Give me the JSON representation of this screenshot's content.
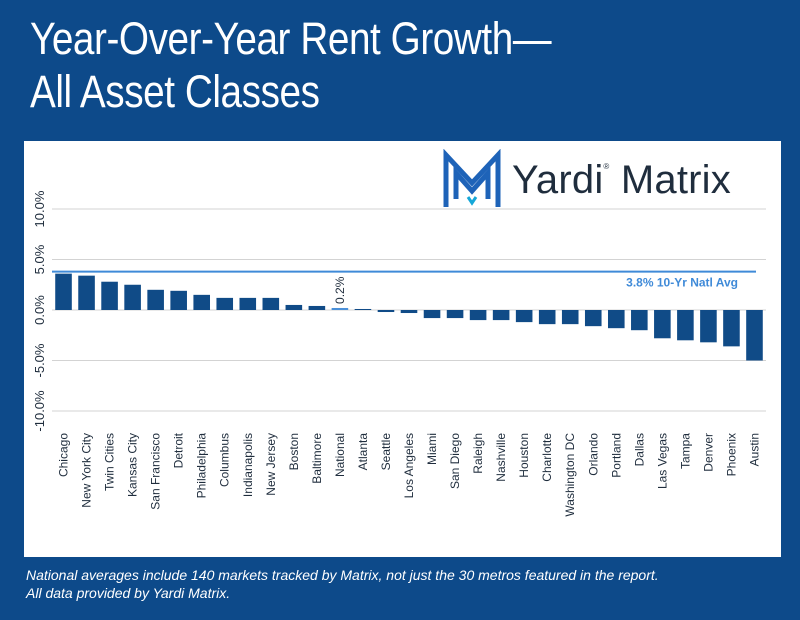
{
  "title": {
    "line1": "Year-Over-Year Rent Growth—",
    "line2": "All Asset Classes"
  },
  "logo": {
    "word": "Yardi",
    "registered": "®",
    "word2": "Matrix",
    "icon": "yardi-matrix-logo-icon"
  },
  "footnote": {
    "line1": "National averages include 140 markets tracked by Matrix, not just the 30 metros featured in the report.",
    "line2": "All data provided by Yardi Matrix."
  },
  "colors": {
    "background": "#0d4a8a",
    "bar": "#104b87",
    "national_bar": "#4a90d9",
    "reference_line": "#3f8ad8",
    "logo_icon": "#1e63b8"
  },
  "chart_data": {
    "type": "bar",
    "categories": [
      "Chicago",
      "New York City",
      "Twin Cities",
      "Kansas City",
      "San Francisco",
      "Detroit",
      "Philadelphia",
      "Columbus",
      "Indianapolis",
      "New Jersey",
      "Boston",
      "Baltimore",
      "National",
      "Atlanta",
      "Seattle",
      "Los Angeles",
      "Miami",
      "San Diego",
      "Raleigh",
      "Nashville",
      "Houston",
      "Charlotte",
      "Washington DC",
      "Orlando",
      "Portland",
      "Dallas",
      "Las Vegas",
      "Tampa",
      "Denver",
      "Phoenix",
      "Austin"
    ],
    "values": [
      3.6,
      3.4,
      2.8,
      2.5,
      2.0,
      1.9,
      1.5,
      1.2,
      1.2,
      1.2,
      0.5,
      0.4,
      0.2,
      0.1,
      -0.2,
      -0.3,
      -0.8,
      -0.8,
      -1.0,
      -1.0,
      -1.2,
      -1.4,
      -1.4,
      -1.6,
      -1.8,
      -2.0,
      -2.8,
      -3.0,
      -3.2,
      -3.6,
      -5.0
    ],
    "ylim": [
      -10,
      10
    ],
    "yticks": [
      "10.0%",
      "5.0%",
      "0.0%",
      "-5.0%",
      "-10.0%"
    ],
    "ytick_values": [
      10,
      5,
      0,
      -5,
      -10
    ],
    "grid": true,
    "reference_line": {
      "value": 3.8,
      "label": "3.8% 10-Yr Natl Avg"
    },
    "highlight": {
      "category": "National",
      "label": "0.2%"
    }
  }
}
